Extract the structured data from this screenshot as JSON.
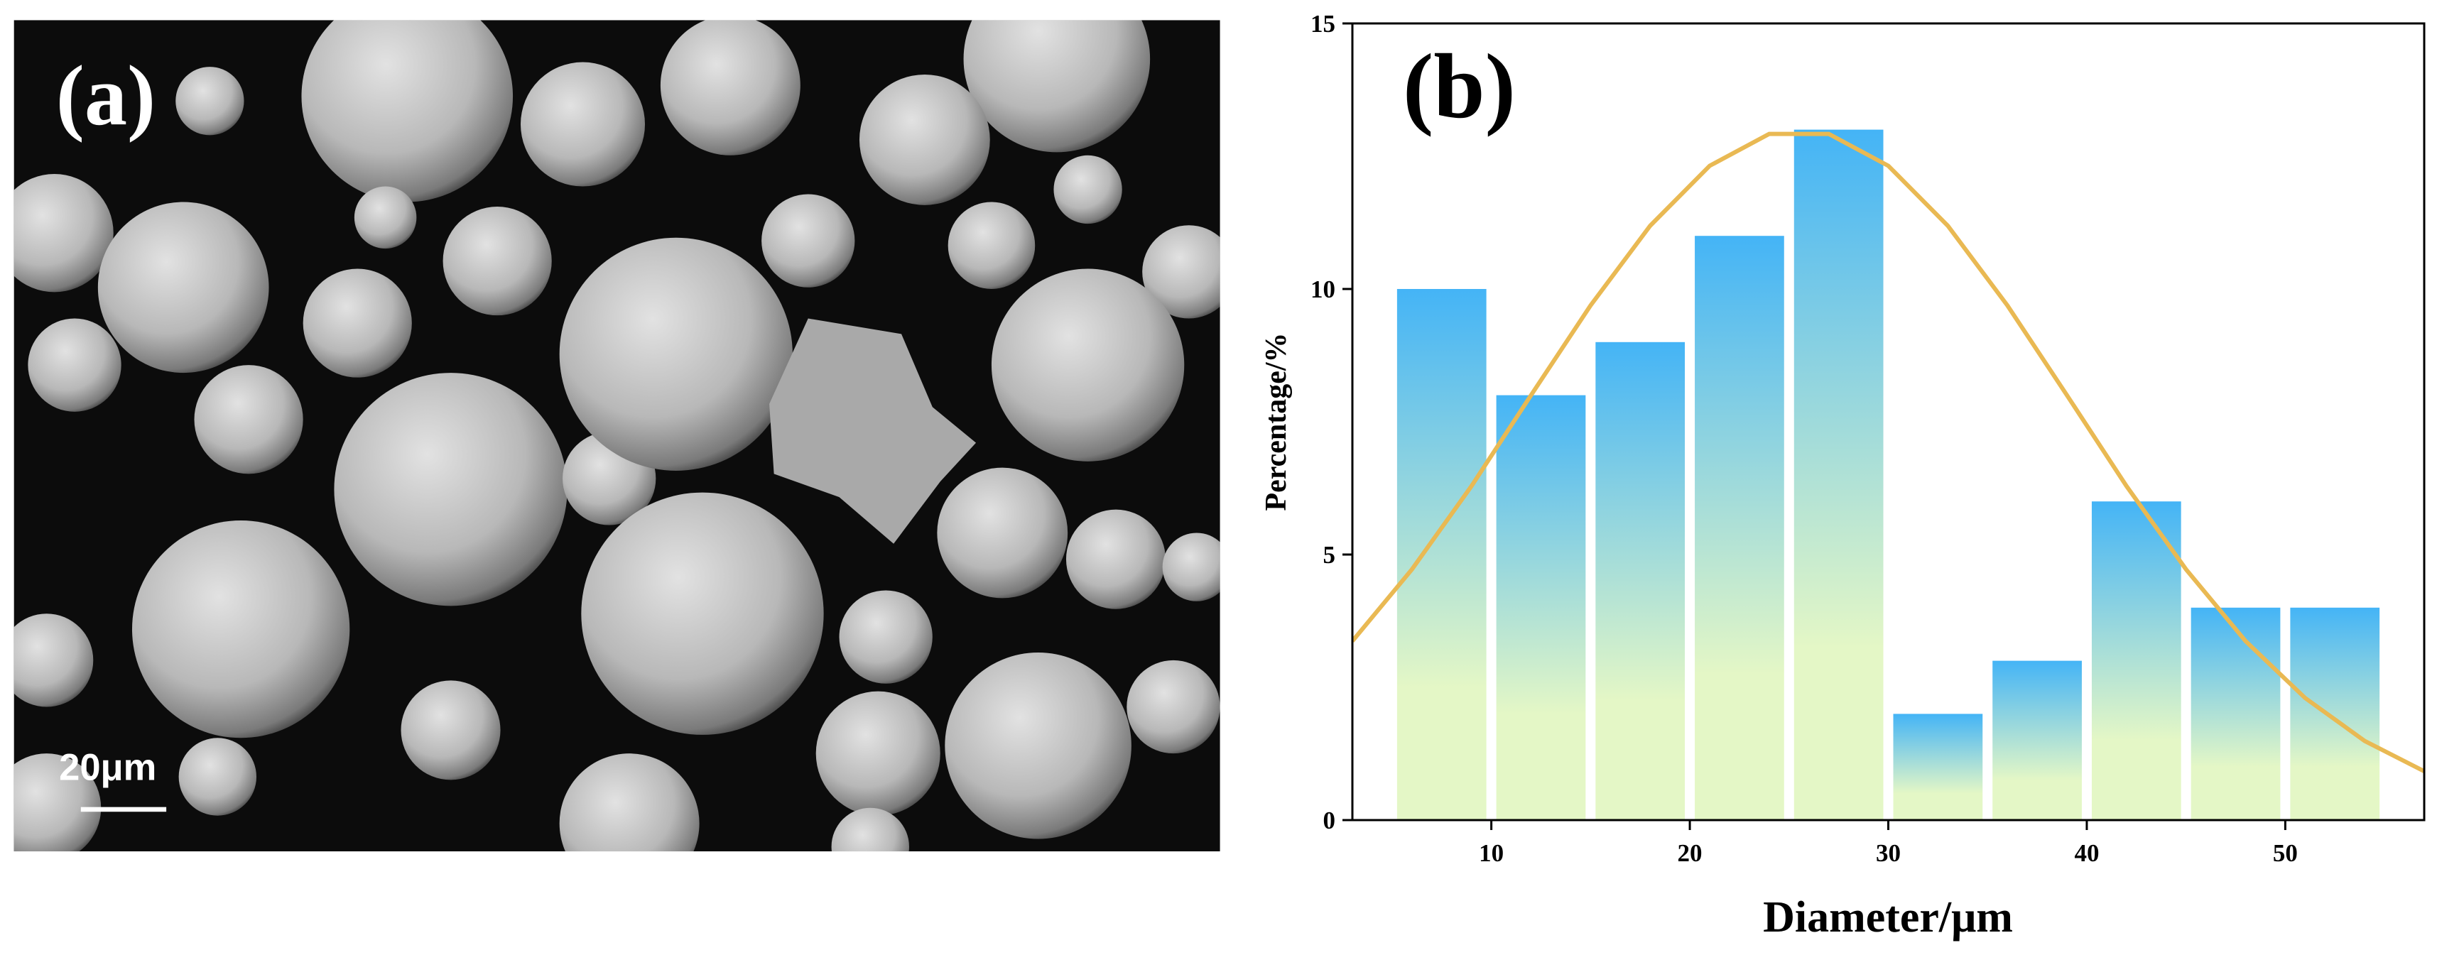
{
  "panel_a": {
    "label": "(a)",
    "scale_bar": "20μm"
  },
  "chart_data": {
    "type": "histogram",
    "panel_label": "(b)",
    "x_label": "Diameter/μm",
    "y_label": "Percentage/%",
    "bins": [
      5,
      10,
      15,
      20,
      25,
      30,
      35,
      40,
      45,
      50,
      55
    ],
    "values": [
      10,
      8,
      9,
      11,
      13,
      2,
      3,
      6,
      4,
      4
    ],
    "bar_colors": [
      "#44b4f6",
      "#e4f7c6"
    ],
    "xlim": [
      3,
      57
    ],
    "ylim": [
      0,
      15
    ],
    "xticks": [
      10,
      20,
      30,
      40,
      50
    ],
    "yticks": [
      0,
      5,
      10,
      15
    ],
    "fit": {
      "type": "line",
      "color": "#e9b953",
      "x": [
        3,
        6,
        9,
        12,
        15,
        18,
        21,
        24,
        27,
        30,
        33,
        36,
        39,
        42,
        45,
        48,
        51,
        54,
        57
      ],
      "values": [
        3.37,
        4.72,
        6.29,
        8.0,
        9.69,
        11.19,
        12.32,
        12.92,
        12.92,
        12.32,
        11.19,
        9.69,
        8.0,
        6.29,
        4.72,
        3.37,
        2.3,
        1.49,
        0.92
      ]
    }
  }
}
